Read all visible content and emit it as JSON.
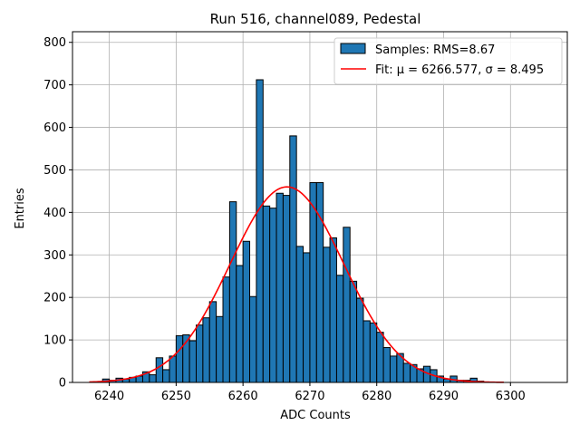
{
  "chart_data": {
    "type": "bar",
    "title": "Run 516, channel089, Pedestal",
    "xlabel": "ADC Counts",
    "ylabel": "Entries",
    "xlim": [
      6234.5,
      6308.5
    ],
    "ylim": [
      0,
      825
    ],
    "xticks": [
      6240,
      6250,
      6260,
      6270,
      6280,
      6290,
      6300
    ],
    "yticks": [
      0,
      100,
      200,
      300,
      400,
      500,
      600,
      700,
      800
    ],
    "grid": true,
    "legend_position": "top-right",
    "histogram": {
      "name": "Samples: RMS=8.67",
      "color": "#1f77b4",
      "bin_width": 1,
      "bin_starts": [
        6237,
        6238,
        6239,
        6240,
        6241,
        6242,
        6243,
        6244,
        6245,
        6246,
        6247,
        6248,
        6249,
        6250,
        6251,
        6252,
        6253,
        6254,
        6255,
        6256,
        6257,
        6258,
        6259,
        6260,
        6261,
        6262,
        6263,
        6264,
        6265,
        6266,
        6267,
        6268,
        6269,
        6270,
        6271,
        6272,
        6273,
        6274,
        6275,
        6276,
        6277,
        6278,
        6279,
        6280,
        6281,
        6282,
        6283,
        6284,
        6285,
        6286,
        6287,
        6288,
        6289,
        6290,
        6291,
        6292,
        6293,
        6294,
        6295,
        6296,
        6297,
        6298,
        6299,
        6300,
        6301,
        6302,
        6303,
        6304,
        6305
      ],
      "counts": [
        0,
        0,
        8,
        5,
        10,
        8,
        12,
        15,
        25,
        18,
        58,
        30,
        62,
        110,
        112,
        98,
        135,
        152,
        190,
        155,
        248,
        425,
        275,
        332,
        202,
        712,
        415,
        410,
        445,
        440,
        580,
        320,
        305,
        470,
        470,
        318,
        340,
        252,
        365,
        238,
        198,
        145,
        140,
        118,
        82,
        62,
        68,
        45,
        42,
        32,
        38,
        30,
        15,
        8,
        15,
        5,
        5,
        10,
        3,
        0,
        0,
        0,
        0,
        0,
        0,
        0,
        0,
        0,
        0
      ]
    },
    "fit": {
      "name": "Fit: μ = 6266.577, σ = 8.495",
      "color": "#ff0000",
      "mu": 6266.577,
      "sigma": 8.495,
      "amplitude": 460,
      "x_range": [
        6237,
        6299
      ]
    }
  }
}
